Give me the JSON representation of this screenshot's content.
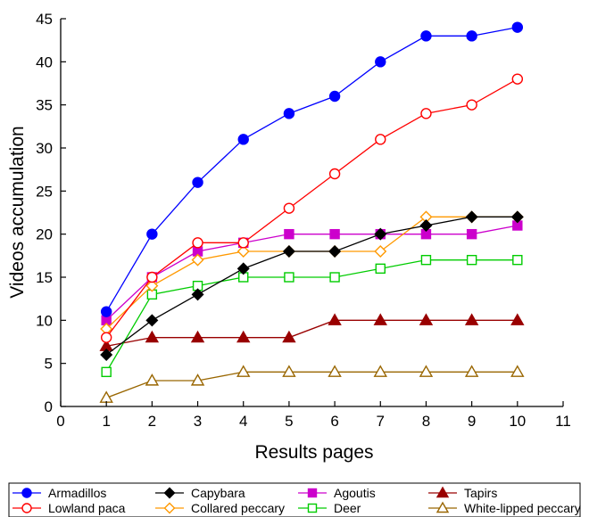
{
  "chart_data": {
    "type": "line",
    "xlabel": "Results pages",
    "ylabel": "Videos accumulation",
    "xlim": [
      0,
      11
    ],
    "ylim": [
      0,
      45
    ],
    "xticks": [
      0,
      1,
      2,
      3,
      4,
      5,
      6,
      7,
      8,
      9,
      10,
      11
    ],
    "yticks": [
      0,
      5,
      10,
      15,
      20,
      25,
      30,
      35,
      40,
      45
    ],
    "grid": false,
    "legend_position": "bottom",
    "series": [
      {
        "name": "Armadillos",
        "color": "#0000ff",
        "marker": "circle",
        "filled": true,
        "x": [
          1,
          2,
          3,
          4,
          5,
          6,
          7,
          8,
          9,
          10
        ],
        "y": [
          11,
          20,
          26,
          31,
          34,
          36,
          40,
          43,
          43,
          44
        ]
      },
      {
        "name": "Lowland paca",
        "color": "#ff0000",
        "marker": "circle",
        "filled": false,
        "x": [
          1,
          2,
          3,
          4,
          5,
          6,
          7,
          8,
          9,
          10
        ],
        "y": [
          8,
          15,
          19,
          19,
          23,
          27,
          31,
          34,
          35,
          38
        ]
      },
      {
        "name": "Capybara",
        "color": "#000000",
        "marker": "diamond",
        "filled": true,
        "x": [
          1,
          2,
          3,
          4,
          5,
          6,
          7,
          8,
          9,
          10
        ],
        "y": [
          6,
          10,
          13,
          16,
          18,
          18,
          20,
          21,
          22,
          22
        ]
      },
      {
        "name": "Collared peccary",
        "color": "#ff9900",
        "marker": "diamond",
        "filled": false,
        "x": [
          1,
          2,
          3,
          4,
          5,
          6,
          7,
          8,
          9,
          10
        ],
        "y": [
          9,
          14,
          17,
          18,
          18,
          18,
          18,
          22,
          22,
          22
        ]
      },
      {
        "name": "Agoutis",
        "color": "#cc00cc",
        "marker": "square",
        "filled": true,
        "x": [
          1,
          2,
          3,
          4,
          5,
          6,
          7,
          8,
          9,
          10
        ],
        "y": [
          10,
          15,
          18,
          19,
          20,
          20,
          20,
          20,
          20,
          21
        ]
      },
      {
        "name": "Deer",
        "color": "#00cc00",
        "marker": "square",
        "filled": false,
        "x": [
          1,
          2,
          3,
          4,
          5,
          6,
          7,
          8,
          9,
          10
        ],
        "y": [
          4,
          13,
          14,
          15,
          15,
          15,
          16,
          17,
          17,
          17
        ]
      },
      {
        "name": "Tapirs",
        "color": "#990000",
        "marker": "triangle",
        "filled": true,
        "x": [
          1,
          2,
          3,
          4,
          5,
          6,
          7,
          8,
          9,
          10
        ],
        "y": [
          7,
          8,
          8,
          8,
          8,
          10,
          10,
          10,
          10,
          10
        ]
      },
      {
        "name": "White-lipped peccary",
        "color": "#996600",
        "marker": "triangle",
        "filled": false,
        "x": [
          1,
          2,
          3,
          4,
          5,
          6,
          7,
          8,
          9,
          10
        ],
        "y": [
          1,
          3,
          3,
          4,
          4,
          4,
          4,
          4,
          4,
          4
        ]
      }
    ]
  }
}
